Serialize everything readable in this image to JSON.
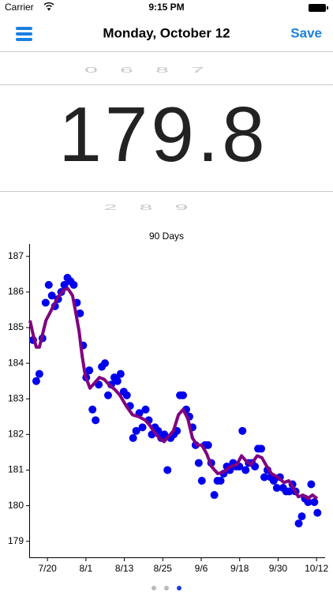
{
  "status_bar": {
    "carrier": "Carrier",
    "time": "9:15 PM"
  },
  "nav_bar": {
    "title": "Monday, October 12",
    "save": "Save"
  },
  "picker": {
    "above": "0 6 8 7",
    "value": "179.8",
    "below": "2 8   9"
  },
  "chart_data": {
    "type": "scatter",
    "title": "90 Days",
    "xlim": [
      0,
      94.5
    ],
    "ylim": [
      178.55,
      187.35
    ],
    "xticks": [
      {
        "value": 5.6,
        "label": "7/20"
      },
      {
        "value": 17.9,
        "label": "8/1"
      },
      {
        "value": 30.2,
        "label": "8/13"
      },
      {
        "value": 42.5,
        "label": "8/25"
      },
      {
        "value": 54.8,
        "label": "9/6"
      },
      {
        "value": 67.1,
        "label": "9/18"
      },
      {
        "value": 79.4,
        "label": "9/30"
      },
      {
        "value": 91.7,
        "label": "10/12"
      }
    ],
    "yticks": [
      179,
      180,
      181,
      182,
      183,
      184,
      185,
      186,
      187
    ],
    "series": [
      {
        "type": "scatter",
        "color": "#0000ee",
        "x": [
          1,
          2,
          3,
          4,
          5,
          6,
          7,
          8,
          9,
          10,
          11,
          12,
          13,
          14,
          15,
          16,
          17,
          18,
          19,
          20,
          21,
          22,
          23,
          24,
          25,
          26,
          27,
          28,
          29,
          30,
          31,
          32,
          33,
          34,
          35,
          36,
          37,
          38,
          39,
          40,
          41,
          42,
          43,
          44,
          45,
          46,
          47,
          48,
          49,
          50,
          51,
          52,
          53,
          54,
          55,
          56,
          57,
          58,
          59,
          60,
          61,
          62,
          63,
          64,
          65,
          66,
          67,
          68,
          69,
          70,
          71,
          72,
          73,
          74,
          75,
          76,
          77,
          78,
          79,
          80,
          81,
          82,
          83,
          84,
          85,
          86,
          87,
          88,
          89,
          90,
          91,
          92
        ],
        "values": [
          184.65,
          183.5,
          183.7,
          184.7,
          185.7,
          186.2,
          185.9,
          185.6,
          185.8,
          186.0,
          186.2,
          186.4,
          186.3,
          186.2,
          185.7,
          185.4,
          184.5,
          183.6,
          183.8,
          182.7,
          182.4,
          183.4,
          183.9,
          184.0,
          183.1,
          183.4,
          183.6,
          183.5,
          183.7,
          183.2,
          183.1,
          182.8,
          181.9,
          182.1,
          182.6,
          182.2,
          182.7,
          182.4,
          182.0,
          182.2,
          182.1,
          181.9,
          182.0,
          181.0,
          181.9,
          182.0,
          182.1,
          183.1,
          183.1,
          182.7,
          182.5,
          182.2,
          181.7,
          181.2,
          180.7,
          181.7,
          181.7,
          181.2,
          180.3,
          180.7,
          180.7,
          180.9,
          181.1,
          181.0,
          181.2,
          181.1,
          181.1,
          182.1,
          181.0,
          181.2,
          181.2,
          181.1,
          181.6,
          181.6,
          180.8,
          181.0,
          180.8,
          180.7,
          180.5,
          180.8,
          180.5,
          180.4,
          180.4,
          180.6,
          180.4,
          179.5,
          179.7,
          180.2,
          180.1,
          180.6,
          180.1,
          179.8
        ]
      },
      {
        "type": "line",
        "color": "#800080",
        "x": [
          0,
          1,
          2,
          3,
          4,
          5.1,
          6.6,
          8.6,
          10.6,
          12.1,
          13.6,
          14.6,
          15.7,
          16.7,
          17.7,
          19.2,
          20.7,
          22.2,
          23.7,
          25.3,
          27.3,
          28.8,
          30.8,
          32.8,
          34.8,
          36.9,
          38.4,
          39.9,
          41.4,
          42.9,
          44.4,
          45.9,
          47.5,
          49,
          50.5,
          52,
          53.5,
          55,
          56.6,
          58.1,
          60.1,
          62.1,
          64.1,
          66.2,
          67.7,
          69.2,
          70.7,
          72.7,
          74.2,
          75.8,
          77.3,
          79.3,
          81.3,
          82.8,
          84.3,
          85.9,
          87.4,
          88.9,
          90.4,
          91.9
        ],
        "values": [
          185.2,
          184.8,
          184.45,
          184.45,
          184.8,
          185.2,
          185.45,
          185.8,
          186.05,
          186.1,
          185.9,
          185.45,
          184.9,
          184.2,
          183.65,
          183.3,
          183.45,
          183.6,
          183.55,
          183.4,
          183.25,
          183.1,
          182.8,
          182.55,
          182.5,
          182.4,
          182.25,
          182.05,
          181.9,
          181.8,
          181.95,
          182.1,
          182.55,
          182.7,
          182.45,
          181.9,
          181.7,
          181.7,
          181.45,
          181.1,
          180.9,
          180.95,
          181.1,
          181.15,
          181.4,
          181.25,
          181.15,
          181.4,
          181.35,
          181.1,
          180.9,
          180.8,
          180.65,
          180.7,
          180.5,
          180.25,
          180.3,
          180.2,
          180.3,
          180.2
        ]
      }
    ]
  }
}
